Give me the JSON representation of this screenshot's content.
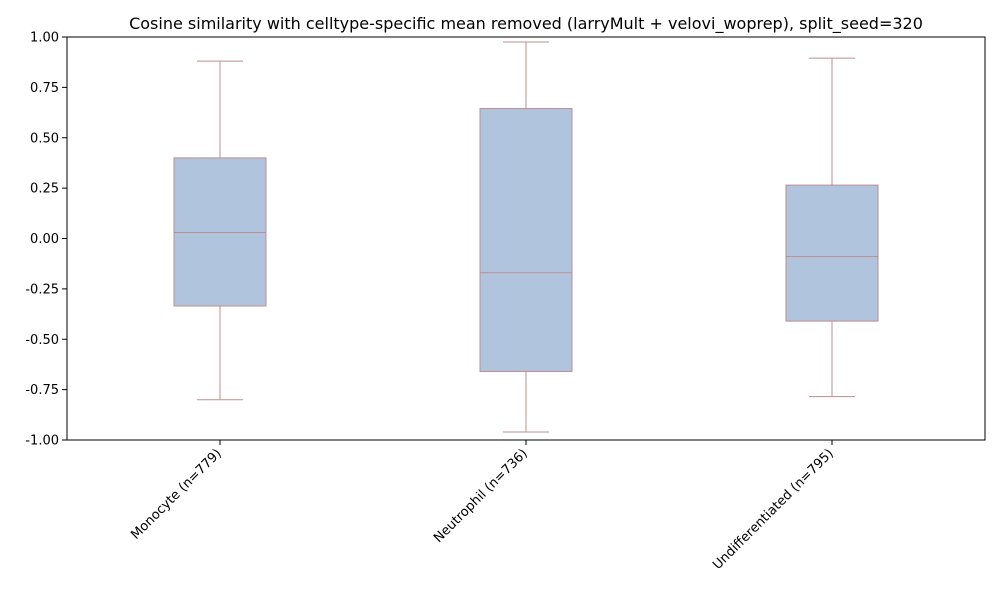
{
  "chart_data": {
    "type": "box",
    "title": "Cosine similarity with celltype-specific mean removed (larryMult + velovi_woprep), split_seed=320",
    "xlabel": "",
    "ylabel": "",
    "ylim": [
      -1.0,
      1.0
    ],
    "yticks": [
      "-1.00",
      "-0.75",
      "-0.50",
      "-0.25",
      "0.00",
      "0.25",
      "0.50",
      "0.75",
      "1.00"
    ],
    "categories": [
      "Monocyte (n=779)",
      "Neutrophil (n=736)",
      "Undifferentiated (n=795)"
    ],
    "boxes": [
      {
        "category": "Monocyte (n=779)",
        "whisker_low": -0.8,
        "q1": -0.335,
        "median": 0.03,
        "q3": 0.4,
        "whisker_high": 0.88
      },
      {
        "category": "Neutrophil (n=736)",
        "whisker_low": -0.96,
        "q1": -0.66,
        "median": -0.17,
        "q3": 0.645,
        "whisker_high": 0.975
      },
      {
        "category": "Undifferentiated (n=795)",
        "whisker_low": -0.785,
        "q1": -0.41,
        "median": -0.09,
        "q3": 0.265,
        "whisker_high": 0.895
      }
    ],
    "grid": false,
    "legend": "none",
    "colors": {
      "box_fill": "#b0c4de",
      "box_edge": "#bc8f8f",
      "axis": "#000000"
    }
  }
}
